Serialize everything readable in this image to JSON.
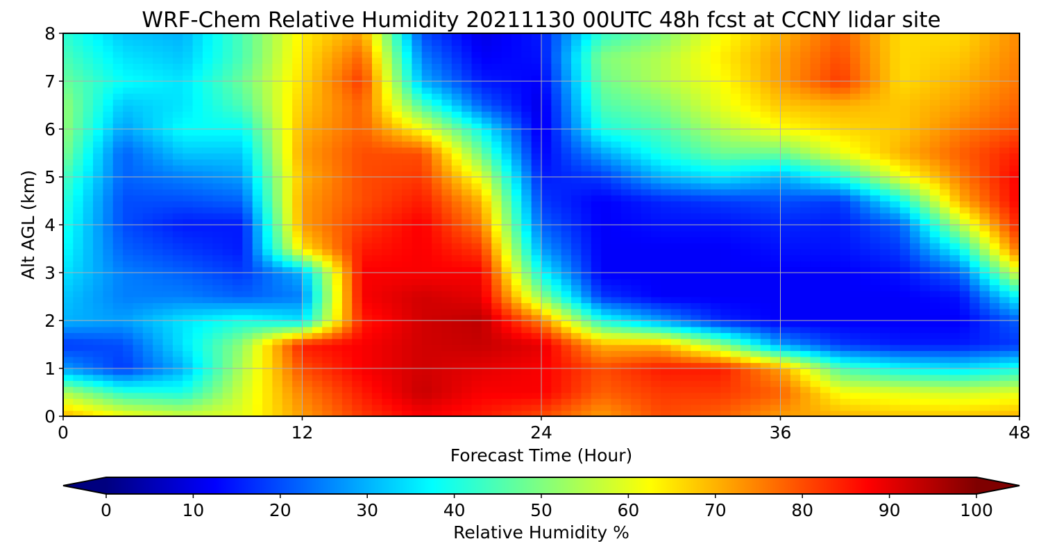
{
  "chart_data": {
    "type": "heatmap",
    "title": "WRF-Chem Relative Humidity 20211130 00UTC 48h fcst at CCNY lidar site",
    "xlabel": "Forecast Time (Hour)",
    "ylabel": "Alt AGL (km)",
    "xlim": [
      0,
      48
    ],
    "ylim": [
      0,
      8
    ],
    "xticks": [
      0,
      12,
      24,
      36,
      48
    ],
    "yticks": [
      0,
      1,
      2,
      3,
      4,
      5,
      6,
      7,
      8
    ],
    "grid": true,
    "colormap": "jet",
    "colorbar": {
      "label": "Relative Humidity %",
      "ticks": [
        0,
        10,
        20,
        30,
        40,
        50,
        60,
        70,
        80,
        90,
        100
      ],
      "range": [
        0,
        100
      ],
      "extend": "both"
    },
    "x": [
      0,
      3,
      6,
      9,
      12,
      15,
      18,
      21,
      24,
      27,
      30,
      33,
      36,
      39,
      42,
      45,
      48
    ],
    "y": [
      0,
      0.5,
      1,
      1.5,
      2,
      2.5,
      3,
      3.5,
      4,
      4.5,
      5,
      5.5,
      6,
      6.5,
      7,
      7.5,
      8
    ],
    "z": [
      [
        70,
        62,
        58,
        60,
        72,
        82,
        88,
        85,
        80,
        72,
        80,
        78,
        72,
        70,
        68,
        68,
        70
      ],
      [
        55,
        42,
        40,
        58,
        75,
        85,
        93,
        88,
        88,
        78,
        82,
        82,
        78,
        62,
        60,
        58,
        60
      ],
      [
        28,
        18,
        30,
        55,
        80,
        88,
        92,
        90,
        88,
        80,
        85,
        85,
        72,
        45,
        38,
        35,
        40
      ],
      [
        18,
        20,
        35,
        52,
        85,
        88,
        92,
        93,
        90,
        70,
        70,
        52,
        28,
        18,
        15,
        15,
        18
      ],
      [
        30,
        28,
        35,
        40,
        35,
        85,
        92,
        94,
        75,
        40,
        28,
        16,
        12,
        12,
        12,
        12,
        22
      ],
      [
        32,
        25,
        25,
        22,
        25,
        88,
        92,
        90,
        52,
        18,
        12,
        12,
        12,
        12,
        12,
        14,
        38
      ],
      [
        35,
        25,
        22,
        18,
        30,
        88,
        88,
        88,
        38,
        12,
        12,
        12,
        12,
        12,
        14,
        22,
        60
      ],
      [
        38,
        22,
        18,
        15,
        65,
        85,
        88,
        82,
        28,
        12,
        12,
        12,
        14,
        14,
        18,
        38,
        78
      ],
      [
        40,
        20,
        15,
        15,
        72,
        82,
        88,
        75,
        22,
        12,
        14,
        14,
        16,
        15,
        22,
        55,
        85
      ],
      [
        42,
        20,
        20,
        22,
        72,
        80,
        85,
        70,
        18,
        12,
        16,
        18,
        20,
        18,
        38,
        70,
        88
      ],
      [
        45,
        22,
        25,
        28,
        70,
        80,
        82,
        60,
        15,
        18,
        30,
        35,
        30,
        40,
        60,
        75,
        88
      ],
      [
        50,
        22,
        32,
        32,
        72,
        80,
        80,
        48,
        12,
        28,
        40,
        48,
        48,
        60,
        70,
        78,
        85
      ],
      [
        52,
        28,
        38,
        38,
        70,
        78,
        62,
        38,
        10,
        40,
        45,
        55,
        62,
        66,
        68,
        75,
        80
      ],
      [
        52,
        32,
        35,
        45,
        68,
        78,
        45,
        22,
        10,
        45,
        50,
        60,
        68,
        70,
        68,
        72,
        78
      ],
      [
        48,
        38,
        35,
        48,
        66,
        82,
        30,
        15,
        12,
        48,
        55,
        62,
        72,
        82,
        66,
        70,
        76
      ],
      [
        45,
        35,
        32,
        45,
        65,
        78,
        25,
        12,
        14,
        50,
        55,
        64,
        72,
        80,
        66,
        68,
        75
      ],
      [
        42,
        32,
        30,
        45,
        64,
        72,
        20,
        10,
        15,
        42,
        50,
        62,
        70,
        78,
        66,
        66,
        74
      ]
    ]
  }
}
